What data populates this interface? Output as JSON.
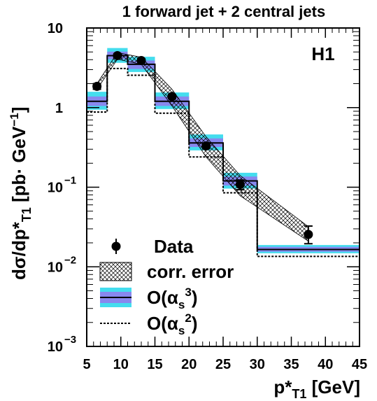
{
  "chart_data": {
    "type": "line",
    "title": "1 forward jet + 2 central jets",
    "experiment_label": "H1",
    "xlabel": {
      "main": "p*",
      "sub": "T1",
      "unit": " [GeV]"
    },
    "ylabel": {
      "main": "dσ/dp*",
      "sub": "T1",
      "unit": " [pb· GeV",
      "unit_sup": "−1",
      "close": "]"
    },
    "xlim": [
      5,
      45
    ],
    "ylim": [
      0.001,
      10
    ],
    "yscale": "log",
    "x_ticks": [
      "5",
      "10",
      "15",
      "20",
      "25",
      "30",
      "35",
      "40",
      "45"
    ],
    "y_ticks": [
      {
        "base": "10",
        "exp": ""
      },
      {
        "base": "1",
        "exp": ""
      },
      {
        "base": "10",
        "exp": "−1"
      },
      {
        "base": "10",
        "exp": "−2"
      },
      {
        "base": "10",
        "exp": "−3"
      }
    ],
    "bins": [
      [
        5,
        8
      ],
      [
        8,
        11
      ],
      [
        11,
        15
      ],
      [
        15,
        20
      ],
      [
        20,
        25
      ],
      [
        25,
        30
      ],
      [
        30,
        45
      ]
    ],
    "series": [
      {
        "name": "Data",
        "kind": "points",
        "x": [
          6.5,
          9.5,
          13.0,
          17.5,
          22.5,
          27.5,
          37.5
        ],
        "y": [
          1.85,
          4.5,
          3.9,
          1.38,
          0.33,
          0.108,
          0.0255
        ],
        "yerr_low": [
          0.15,
          0.25,
          0.2,
          0.08,
          0.025,
          0.015,
          0.006
        ],
        "yerr_high": [
          0.15,
          0.25,
          0.2,
          0.08,
          0.025,
          0.015,
          0.007
        ]
      },
      {
        "name": "corr. error",
        "kind": "band",
        "x": [
          6.5,
          9.5,
          13.0,
          17.5,
          22.5,
          27.5,
          37.5
        ],
        "low": [
          1.7,
          4.05,
          3.5,
          1.05,
          0.24,
          0.078,
          0.021
        ],
        "high": [
          2.0,
          4.9,
          4.3,
          1.7,
          0.43,
          0.14,
          0.032
        ]
      },
      {
        "name": "O(αs3)",
        "kind": "histogram",
        "values": [
          1.2,
          4.5,
          3.5,
          1.2,
          0.36,
          0.12,
          0.0165
        ],
        "band_inner_low": [
          1.05,
          4.05,
          3.05,
          1.05,
          0.32,
          0.105,
          0.0155
        ],
        "band_inner_high": [
          1.38,
          5.05,
          3.9,
          1.38,
          0.41,
          0.136,
          0.0178
        ],
        "band_outer_low": [
          0.94,
          3.65,
          2.8,
          0.96,
          0.29,
          0.096,
          0.0148
        ],
        "band_outer_high": [
          1.58,
          5.6,
          4.35,
          1.55,
          0.46,
          0.152,
          0.0188
        ]
      },
      {
        "name": "O(αs2)",
        "kind": "histogram",
        "values": [
          0.88,
          3.1,
          2.55,
          0.85,
          0.24,
          0.085,
          0.0135
        ]
      }
    ],
    "legend": {
      "position": "bottom-left",
      "entries": [
        {
          "text": "Data"
        },
        {
          "text": "corr. error"
        },
        {
          "text": "O(α",
          "sub": "s",
          "sup": "3",
          "close": ")"
        },
        {
          "text": "O(α",
          "sub": "s",
          "sup": "2",
          "close": ")"
        }
      ]
    },
    "colors": {
      "outer_band": "#44ddee",
      "inner_band": "#8888ee",
      "line": "#000000"
    }
  }
}
